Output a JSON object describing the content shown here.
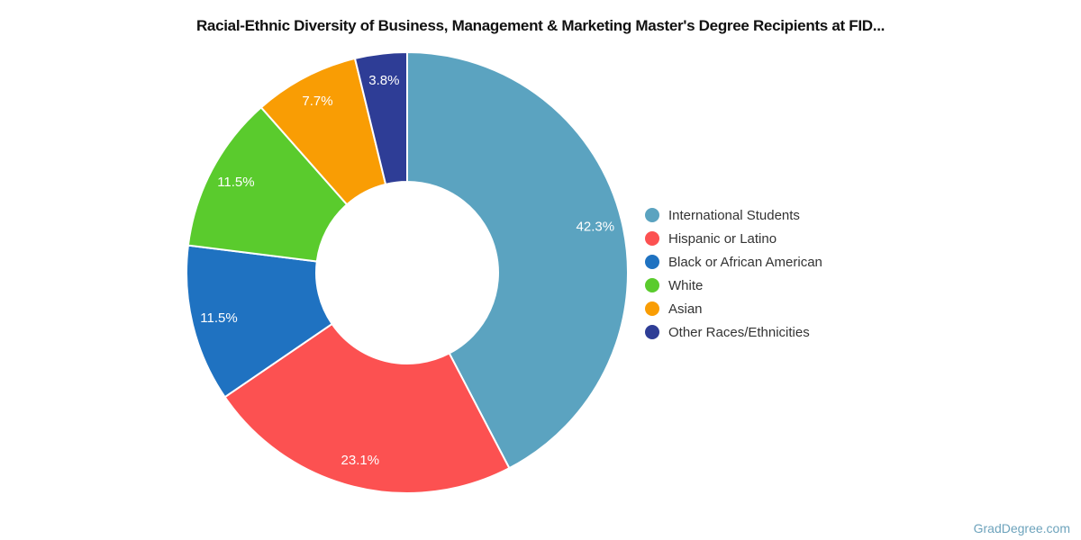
{
  "page": {
    "background_color": "#ffffff",
    "watermark": "GradDegree.com",
    "watermark_color": "#6da3bc"
  },
  "chart_data": {
    "type": "pie",
    "donut": true,
    "title": "Racial-Ethnic Diversity of Business, Management & Marketing Master's Degree Recipients at FID...",
    "start_angle_deg": 0,
    "direction": "clockwise",
    "legend_position": "right",
    "label_color": "#ffffff",
    "slices": [
      {
        "label": "International Students",
        "value": 42.3,
        "display": "42.3%",
        "color": "#5ba3c0"
      },
      {
        "label": "Hispanic or Latino",
        "value": 23.1,
        "display": "23.1%",
        "color": "#fc5151"
      },
      {
        "label": "Black or African American",
        "value": 11.5,
        "display": "11.5%",
        "color": "#1f72c1"
      },
      {
        "label": "White",
        "value": 11.5,
        "display": "11.5%",
        "color": "#5acb2d"
      },
      {
        "label": "Asian",
        "value": 7.7,
        "display": "7.7%",
        "color": "#f99d04"
      },
      {
        "label": "Other Races/Ethnicities",
        "value": 3.8,
        "display": "3.8%",
        "color": "#2e3d96"
      }
    ]
  }
}
